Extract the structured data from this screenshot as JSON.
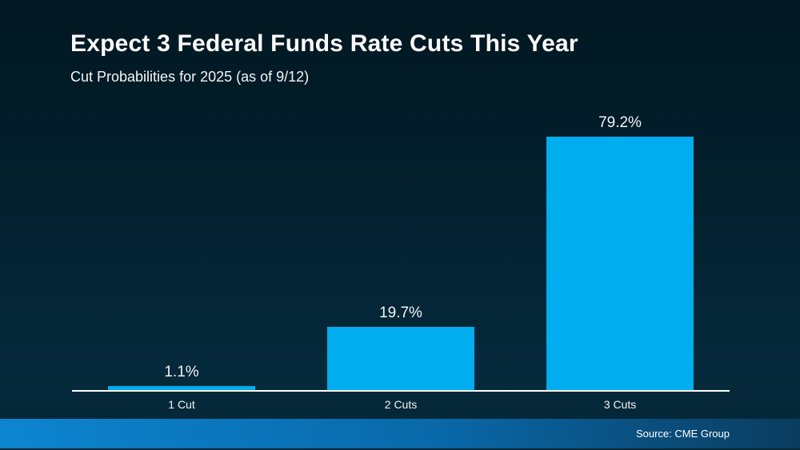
{
  "header": {
    "title": "Expect 3 Federal Funds Rate Cuts This Year",
    "subtitle": "Cut Probabilities for 2025 (as of 9/12)"
  },
  "footer": {
    "source": "Source: CME Group"
  },
  "colors": {
    "background_top": "#021822",
    "background_bottom": "#052737",
    "bar": "#00ADEF",
    "axis_line": "#FFFFFF",
    "text": "#FFFFFF",
    "footer_gradient_left": "#0C85D0",
    "footer_gradient_mid": "#0968A8",
    "footer_gradient_right": "#0A3C5F"
  },
  "chart_data": {
    "type": "bar",
    "title": "Expect 3 Federal Funds Rate Cuts This Year",
    "subtitle": "Cut Probabilities for 2025 (as of 9/12)",
    "categories": [
      "1 Cut",
      "2 Cuts",
      "3 Cuts"
    ],
    "values": [
      1.1,
      19.7,
      79.2
    ],
    "value_labels": [
      "1.1%",
      "19.7%",
      "79.2%"
    ],
    "unit": "%",
    "xlabel": "",
    "ylabel": "",
    "ylim": [
      0,
      88
    ],
    "grid": false,
    "legend": false,
    "bar_color": "#00ADEF",
    "source": "Source: CME Group"
  }
}
